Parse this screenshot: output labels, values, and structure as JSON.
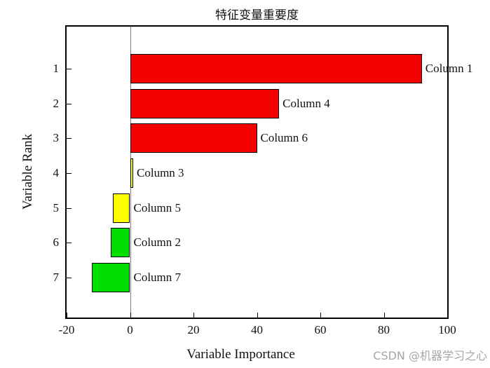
{
  "watermark": "CSDN @机器学习之心",
  "chart_data": {
    "type": "bar",
    "orientation": "horizontal",
    "title": "特征变量重要度",
    "xlabel": "Variable Importance",
    "ylabel": "Variable Rank",
    "xlim": [
      -20,
      100
    ],
    "x_ticks": [
      -20,
      0,
      20,
      40,
      60,
      80,
      100
    ],
    "y_ticks": [
      "1",
      "2",
      "3",
      "4",
      "5",
      "6",
      "7"
    ],
    "grid": false,
    "legend": null,
    "baseline": 0,
    "bar_edge_color": "#000000",
    "categories": [
      "1",
      "2",
      "3",
      "4",
      "5",
      "6",
      "7"
    ],
    "bars": [
      {
        "rank": "1",
        "label": "Column 1",
        "value": 92,
        "color": "#f50000"
      },
      {
        "rank": "2",
        "label": "Column 4",
        "value": 47,
        "color": "#f50000"
      },
      {
        "rank": "3",
        "label": "Column 6",
        "value": 40,
        "color": "#f50000"
      },
      {
        "rank": "4",
        "label": "Column 3",
        "value": 1,
        "color": "#ffff00"
      },
      {
        "rank": "5",
        "label": "Column 5",
        "value": -5.5,
        "color": "#ffff00"
      },
      {
        "rank": "6",
        "label": "Column 2",
        "value": -6,
        "color": "#00dd00"
      },
      {
        "rank": "7",
        "label": "Column 7",
        "value": -12,
        "color": "#00dd00"
      }
    ]
  }
}
